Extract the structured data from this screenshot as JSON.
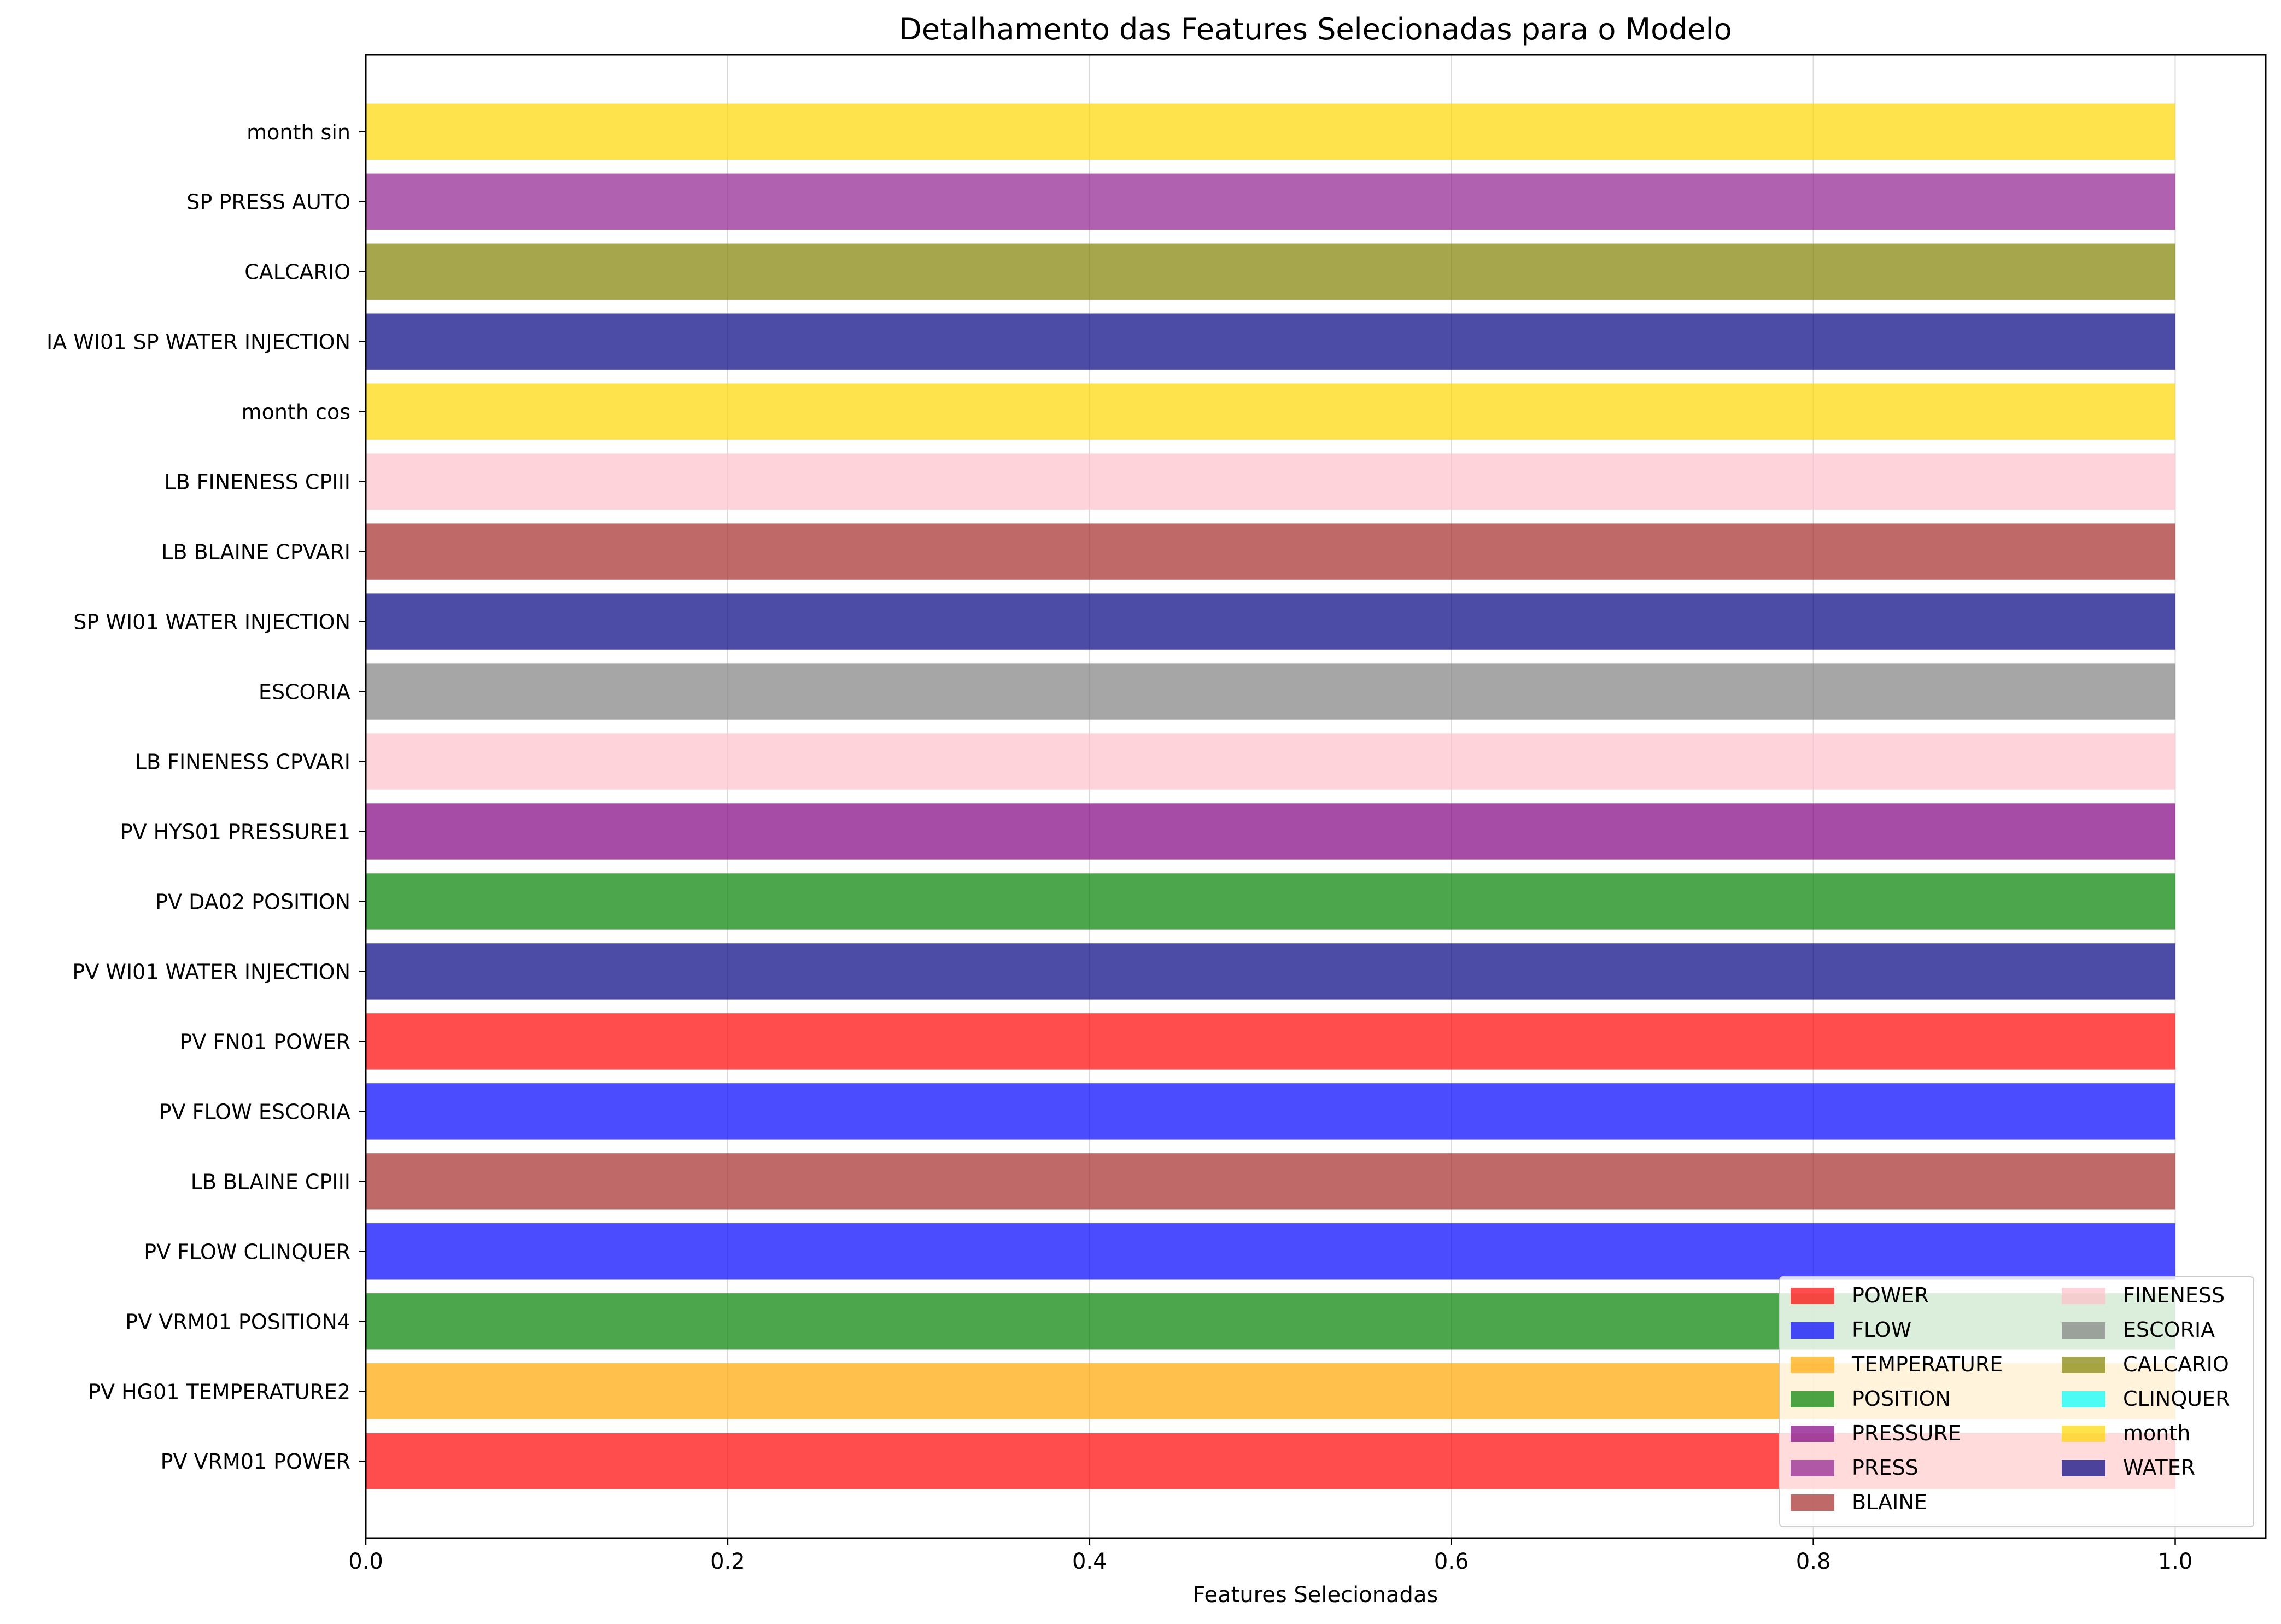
{
  "chart_data": {
    "type": "bar",
    "orientation": "horizontal",
    "title": "Detalhamento das Features Selecionadas para o Modelo",
    "xlabel": "Features Selecionadas",
    "ylabel": "",
    "xlim": [
      0.0,
      1.05
    ],
    "x_ticks": [
      0.0,
      0.2,
      0.4,
      0.6,
      0.8,
      1.0
    ],
    "x_tick_labels": [
      "0.0",
      "0.2",
      "0.4",
      "0.6",
      "0.8",
      "1.0"
    ],
    "grid": "x-axis vertical gridlines",
    "legend_position": "lower-right",
    "categories": [
      "PV VRM01 POWER",
      "PV HG01 TEMPERATURE2",
      "PV VRM01 POSITION4",
      "PV FLOW CLINQUER",
      "LB BLAINE CPIII",
      "PV FLOW ESCORIA",
      "PV FN01 POWER",
      "PV WI01 WATER INJECTION",
      "PV DA02 POSITION",
      "PV HYS01 PRESSURE1",
      "LB FINENESS CPVARI",
      "ESCORIA",
      "SP WI01 WATER INJECTION",
      "LB BLAINE CPVARI",
      "LB FINENESS CPIII",
      "month cos",
      "IA WI01 SP WATER INJECTION",
      "CALCARIO",
      "SP PRESS AUTO",
      "month sin"
    ],
    "values": [
      1,
      1,
      1,
      1,
      1,
      1,
      1,
      1,
      1,
      1,
      1,
      1,
      1,
      1,
      1,
      1,
      1,
      1,
      1,
      1
    ],
    "bar_groups": [
      "POWER",
      "TEMPERATURE",
      "POSITION",
      "FLOW",
      "BLAINE",
      "FLOW",
      "POWER",
      "WATER",
      "POSITION",
      "PRESSURE",
      "FINENESS",
      "ESCORIA",
      "WATER",
      "BLAINE",
      "FINENESS",
      "month",
      "WATER",
      "CALCARIO",
      "PRESS",
      "month"
    ],
    "legend": [
      {
        "label": "POWER",
        "color": "#ff0000"
      },
      {
        "label": "FLOW",
        "color": "#0000ff"
      },
      {
        "label": "TEMPERATURE",
        "color": "#ffa500"
      },
      {
        "label": "POSITION",
        "color": "#008000"
      },
      {
        "label": "PRESSURE",
        "color": "#800080"
      },
      {
        "label": "PRESS",
        "color": "#8e1f8e"
      },
      {
        "label": "BLAINE",
        "color": "#a52a2a"
      },
      {
        "label": "FINENESS",
        "color": "#ffc0cb"
      },
      {
        "label": "ESCORIA",
        "color": "#808080"
      },
      {
        "label": "CALCARIO",
        "color": "#808000"
      },
      {
        "label": "CLINQUER",
        "color": "#00ffff"
      },
      {
        "label": "month",
        "color": "#ffd700"
      },
      {
        "label": "WATER",
        "color": "#000080"
      }
    ],
    "bar_alpha": 0.7
  }
}
